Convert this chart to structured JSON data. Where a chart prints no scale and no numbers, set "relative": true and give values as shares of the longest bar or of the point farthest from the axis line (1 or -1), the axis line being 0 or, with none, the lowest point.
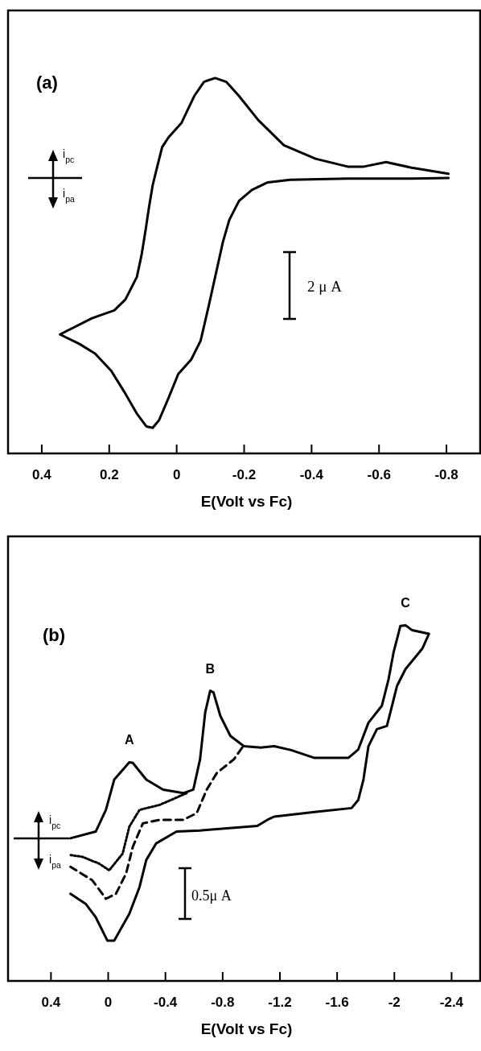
{
  "chart_data": [
    {
      "type": "line",
      "title": "(a)",
      "xlabel": "E(Volt vs Fc)",
      "relative": true,
      "xlim": [
        0.5,
        -0.9
      ],
      "xticks": [
        0.4,
        0.2,
        0,
        -0.2,
        -0.4,
        -0.6,
        -0.8
      ],
      "series": [
        {
          "color": "#000000",
          "line_style": "solid",
          "x": [
            -0.806,
            -0.697,
            -0.621,
            -0.555,
            -0.507,
            -0.412,
            -0.318,
            -0.242,
            -0.185,
            -0.147,
            -0.114,
            -0.081,
            -0.052,
            -0.014,
            0.024,
            0.043,
            0.057,
            0.071,
            0.082,
            0.092,
            0.104,
            0.118,
            0.152,
            0.185,
            0.251,
            0.346,
            0.289,
            0.242,
            0.194,
            0.156,
            0.118,
            0.09,
            0.071,
            0.052,
            0.024,
            -0.005,
            -0.043,
            -0.071,
            -0.095,
            -0.118,
            -0.137,
            -0.156,
            -0.185,
            -0.223,
            -0.27,
            -0.336,
            -0.507,
            -0.697,
            -0.806
          ],
          "values": [
            0.745,
            0.761,
            0.776,
            0.764,
            0.764,
            0.785,
            0.821,
            0.888,
            0.952,
            0.99,
            1.0,
            0.99,
            0.952,
            0.88,
            0.842,
            0.816,
            0.766,
            0.715,
            0.656,
            0.596,
            0.529,
            0.47,
            0.41,
            0.381,
            0.36,
            0.317,
            0.292,
            0.266,
            0.22,
            0.165,
            0.106,
            0.072,
            0.068,
            0.089,
            0.148,
            0.212,
            0.25,
            0.3,
            0.393,
            0.486,
            0.563,
            0.622,
            0.673,
            0.702,
            0.722,
            0.729,
            0.732,
            0.732,
            0.734
          ]
        }
      ],
      "annotations": [
        "i$_{pc}$",
        "i$_{pa}$",
        "2 μ A"
      ]
    },
    {
      "type": "line",
      "title": "(b)",
      "xlabel": "E(Volt vs Fc)",
      "relative": true,
      "xlim": [
        0.7,
        -2.6
      ],
      "xticks": [
        0.4,
        0,
        -0.4,
        -0.8,
        -1.2,
        -1.6,
        -2,
        -2.4
      ],
      "series": [
        {
          "color": "#000000",
          "line_style": "solid",
          "x": [
            0.264,
            0.087,
            0.016,
            -0.042,
            -0.148,
            -0.172,
            -0.266,
            -0.384,
            -0.525,
            -0.595,
            -0.642,
            -0.678,
            -0.713,
            -0.736,
            -0.784,
            -0.854,
            -0.948,
            -1.066,
            -1.16,
            -1.278,
            -1.442,
            -1.678,
            -1.748,
            -1.819,
            -1.913,
            -1.96,
            -1.995,
            -2.042,
            -2.078,
            -2.125,
            -2.242,
            -2.195,
            -2.078,
            -2.019,
            -1.972,
            -1.948,
            -1.878,
            -1.819,
            -1.784,
            -1.748,
            -1.701,
            -1.466,
            -1.16,
            -1.113,
            -1.042,
            -0.642,
            -0.478,
            -0.336,
            -0.266,
            -0.219,
            -0.148,
            -0.042,
            0.005,
            0.087,
            0.158,
            0.264
          ],
          "values": [
            0.401,
            0.42,
            0.481,
            0.566,
            0.615,
            0.613,
            0.566,
            0.538,
            0.528,
            0.538,
            0.623,
            0.755,
            0.816,
            0.811,
            0.745,
            0.689,
            0.66,
            0.656,
            0.66,
            0.649,
            0.627,
            0.627,
            0.651,
            0.726,
            0.774,
            0.849,
            0.925,
            0.998,
            1.0,
            0.986,
            0.976,
            0.934,
            0.877,
            0.83,
            0.755,
            0.717,
            0.708,
            0.66,
            0.566,
            0.509,
            0.486,
            0.476,
            0.462,
            0.453,
            0.436,
            0.423,
            0.42,
            0.387,
            0.34,
            0.264,
            0.189,
            0.113,
            0.113,
            0.179,
            0.217,
            0.245
          ]
        },
        {
          "color": "#000000",
          "line_style": "dotted",
          "x": [
            -0.548,
            -0.36,
            -0.219,
            -0.148,
            -0.101,
            -0.007,
            0.064,
            0.181,
            0.264
          ],
          "values": [
            0.528,
            0.495,
            0.481,
            0.434,
            0.358,
            0.311,
            0.33,
            0.349,
            0.354
          ]
        },
        {
          "color": "#000000",
          "line_style": "dashed",
          "x": [
            -0.936,
            -0.878,
            -0.76,
            -0.689,
            -0.619,
            -0.525,
            -0.36,
            -0.242,
            -0.172,
            -0.125,
            -0.054,
            0.016,
            0.111,
            0.264
          ],
          "values": [
            0.656,
            0.623,
            0.585,
            0.538,
            0.472,
            0.453,
            0.453,
            0.443,
            0.377,
            0.302,
            0.245,
            0.231,
            0.283,
            0.321
          ]
        }
      ],
      "annotations": [
        {
          "text": "A",
          "x": -0.148,
          "y": 0.615
        },
        {
          "text": "B",
          "x": -0.713,
          "y": 0.816
        },
        {
          "text": "C",
          "x": -2.078,
          "y": 1.0
        },
        "i$_{pc}$",
        "i$_{pa}$",
        "0.5μ A"
      ]
    }
  ]
}
